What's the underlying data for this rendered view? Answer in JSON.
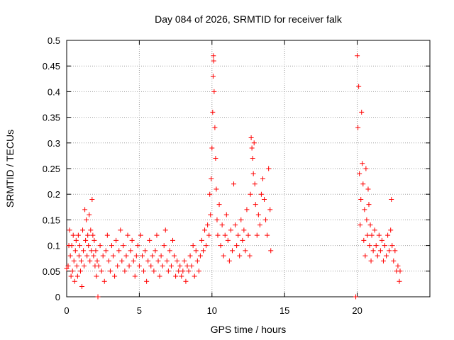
{
  "chart_data": {
    "type": "scatter",
    "title": "Day 084 of 2026, SRMTID for receiver falk",
    "xlabel": "GPS time / hours",
    "ylabel": "SRMTID / TECUs",
    "xlim": [
      0,
      25
    ],
    "ylim": [
      0,
      0.5
    ],
    "x_ticks": [
      0,
      5,
      10,
      15,
      20
    ],
    "x_tick_labels": [
      "0",
      "5",
      "10",
      "15",
      "20"
    ],
    "y_ticks": [
      0,
      0.05,
      0.1,
      0.15,
      0.2,
      0.25,
      0.3,
      0.35,
      0.4,
      0.45,
      0.5
    ],
    "y_tick_labels": [
      "0",
      "0.05",
      "0.1",
      "0.15",
      "0.2",
      "0.25",
      "0.3",
      "0.35",
      "0.4",
      "0.45",
      "0.5"
    ],
    "grid": true,
    "marker": "+",
    "series": [
      {
        "name": "SRMTID",
        "color": "#ff0000",
        "points": [
          [
            0.0,
            0.055
          ],
          [
            0.1,
            0.06
          ],
          [
            0.15,
            0.1
          ],
          [
            0.2,
            0.13
          ],
          [
            0.25,
            0.08
          ],
          [
            0.3,
            0.04
          ],
          [
            0.35,
            0.1
          ],
          [
            0.4,
            0.05
          ],
          [
            0.45,
            0.12
          ],
          [
            0.5,
            0.07
          ],
          [
            0.55,
            0.03
          ],
          [
            0.6,
            0.09
          ],
          [
            0.65,
            0.11
          ],
          [
            0.7,
            0.06
          ],
          [
            0.75,
            0.04
          ],
          [
            0.8,
            0.12
          ],
          [
            0.85,
            0.08
          ],
          [
            0.9,
            0.1
          ],
          [
            0.95,
            0.05
          ],
          [
            1.0,
            0.07
          ],
          [
            1.05,
            0.02
          ],
          [
            1.1,
            0.13
          ],
          [
            1.15,
            0.09
          ],
          [
            1.2,
            0.06
          ],
          [
            1.25,
            0.17
          ],
          [
            1.3,
            0.11
          ],
          [
            1.35,
            0.15
          ],
          [
            1.4,
            0.08
          ],
          [
            1.45,
            0.12
          ],
          [
            1.5,
            0.1
          ],
          [
            1.55,
            0.16
          ],
          [
            1.6,
            0.07
          ],
          [
            1.65,
            0.13
          ],
          [
            1.7,
            0.09
          ],
          [
            1.75,
            0.19
          ],
          [
            1.8,
            0.12
          ],
          [
            1.85,
            0.08
          ],
          [
            1.9,
            0.11
          ],
          [
            1.95,
            0.06
          ],
          [
            2.0,
            0.09
          ],
          [
            2.05,
            0.04
          ],
          [
            2.1,
            0.07
          ],
          [
            2.15,
            0.0
          ],
          [
            2.2,
            0.06
          ],
          [
            2.3,
            0.1
          ],
          [
            2.4,
            0.05
          ],
          [
            2.5,
            0.08
          ],
          [
            2.6,
            0.03
          ],
          [
            2.7,
            0.09
          ],
          [
            2.8,
            0.12
          ],
          [
            2.9,
            0.07
          ],
          [
            3.0,
            0.05
          ],
          [
            3.1,
            0.1
          ],
          [
            3.2,
            0.08
          ],
          [
            3.3,
            0.04
          ],
          [
            3.4,
            0.11
          ],
          [
            3.5,
            0.06
          ],
          [
            3.6,
            0.09
          ],
          [
            3.7,
            0.13
          ],
          [
            3.8,
            0.07
          ],
          [
            3.9,
            0.1
          ],
          [
            4.0,
            0.05
          ],
          [
            4.1,
            0.08
          ],
          [
            4.2,
            0.12
          ],
          [
            4.3,
            0.06
          ],
          [
            4.4,
            0.09
          ],
          [
            4.5,
            0.11
          ],
          [
            4.6,
            0.07
          ],
          [
            4.7,
            0.04
          ],
          [
            4.8,
            0.08
          ],
          [
            4.9,
            0.1
          ],
          [
            5.0,
            0.06
          ],
          [
            5.1,
            0.12
          ],
          [
            5.2,
            0.08
          ],
          [
            5.3,
            0.05
          ],
          [
            5.4,
            0.09
          ],
          [
            5.5,
            0.03
          ],
          [
            5.6,
            0.07
          ],
          [
            5.7,
            0.11
          ],
          [
            5.8,
            0.06
          ],
          [
            5.9,
            0.08
          ],
          [
            6.0,
            0.05
          ],
          [
            6.1,
            0.09
          ],
          [
            6.2,
            0.12
          ],
          [
            6.3,
            0.07
          ],
          [
            6.4,
            0.04
          ],
          [
            6.5,
            0.08
          ],
          [
            6.6,
            0.06
          ],
          [
            6.7,
            0.1
          ],
          [
            6.8,
            0.13
          ],
          [
            6.9,
            0.07
          ],
          [
            7.0,
            0.05
          ],
          [
            7.1,
            0.09
          ],
          [
            7.2,
            0.06
          ],
          [
            7.3,
            0.11
          ],
          [
            7.4,
            0.08
          ],
          [
            7.5,
            0.04
          ],
          [
            7.6,
            0.07
          ],
          [
            7.7,
            0.05
          ],
          [
            7.8,
            0.06
          ],
          [
            7.9,
            0.04
          ],
          [
            8.0,
            0.05
          ],
          [
            8.1,
            0.07
          ],
          [
            8.2,
            0.03
          ],
          [
            8.3,
            0.06
          ],
          [
            8.4,
            0.05
          ],
          [
            8.5,
            0.08
          ],
          [
            8.6,
            0.06
          ],
          [
            8.7,
            0.1
          ],
          [
            8.8,
            0.04
          ],
          [
            8.9,
            0.09
          ],
          [
            9.0,
            0.07
          ],
          [
            9.1,
            0.05
          ],
          [
            9.2,
            0.08
          ],
          [
            9.3,
            0.11
          ],
          [
            9.4,
            0.09
          ],
          [
            9.5,
            0.13
          ],
          [
            9.6,
            0.1
          ],
          [
            9.7,
            0.14
          ],
          [
            9.8,
            0.12
          ],
          [
            9.85,
            0.2
          ],
          [
            9.9,
            0.16
          ],
          [
            9.95,
            0.23
          ],
          [
            10.0,
            0.29
          ],
          [
            10.05,
            0.36
          ],
          [
            10.08,
            0.43
          ],
          [
            10.1,
            0.47
          ],
          [
            10.12,
            0.46
          ],
          [
            10.15,
            0.4
          ],
          [
            10.2,
            0.33
          ],
          [
            10.25,
            0.27
          ],
          [
            10.3,
            0.21
          ],
          [
            10.35,
            0.15
          ],
          [
            10.4,
            0.12
          ],
          [
            10.5,
            0.18
          ],
          [
            10.6,
            0.1
          ],
          [
            10.7,
            0.14
          ],
          [
            10.8,
            0.08
          ],
          [
            10.9,
            0.12
          ],
          [
            11.0,
            0.16
          ],
          [
            11.1,
            0.11
          ],
          [
            11.2,
            0.07
          ],
          [
            11.3,
            0.13
          ],
          [
            11.4,
            0.09
          ],
          [
            11.5,
            0.22
          ],
          [
            11.6,
            0.14
          ],
          [
            11.7,
            0.1
          ],
          [
            11.8,
            0.12
          ],
          [
            11.9,
            0.08
          ],
          [
            12.0,
            0.15
          ],
          [
            12.1,
            0.11
          ],
          [
            12.2,
            0.13
          ],
          [
            12.3,
            0.09
          ],
          [
            12.4,
            0.17
          ],
          [
            12.5,
            0.12
          ],
          [
            12.6,
            0.08
          ],
          [
            12.65,
            0.2
          ],
          [
            12.7,
            0.31
          ],
          [
            12.75,
            0.29
          ],
          [
            12.8,
            0.27
          ],
          [
            12.85,
            0.24
          ],
          [
            12.9,
            0.3
          ],
          [
            12.95,
            0.22
          ],
          [
            13.0,
            0.18
          ],
          [
            13.1,
            0.12
          ],
          [
            13.2,
            0.16
          ],
          [
            13.3,
            0.14
          ],
          [
            13.4,
            0.2
          ],
          [
            13.5,
            0.23
          ],
          [
            13.6,
            0.19
          ],
          [
            13.7,
            0.15
          ],
          [
            13.8,
            0.12
          ],
          [
            13.9,
            0.25
          ],
          [
            14.0,
            0.17
          ],
          [
            14.05,
            0.09
          ],
          [
            19.9,
            0.0
          ],
          [
            20.0,
            0.47
          ],
          [
            20.05,
            0.33
          ],
          [
            20.1,
            0.41
          ],
          [
            20.15,
            0.24
          ],
          [
            20.2,
            0.14
          ],
          [
            20.25,
            0.19
          ],
          [
            20.3,
            0.36
          ],
          [
            20.35,
            0.26
          ],
          [
            20.4,
            0.22
          ],
          [
            20.45,
            0.11
          ],
          [
            20.5,
            0.17
          ],
          [
            20.55,
            0.08
          ],
          [
            20.6,
            0.25
          ],
          [
            20.65,
            0.15
          ],
          [
            20.7,
            0.12
          ],
          [
            20.75,
            0.21
          ],
          [
            20.8,
            0.18
          ],
          [
            20.85,
            0.1
          ],
          [
            20.9,
            0.14
          ],
          [
            20.95,
            0.07
          ],
          [
            21.0,
            0.12
          ],
          [
            21.1,
            0.09
          ],
          [
            21.2,
            0.13
          ],
          [
            21.3,
            0.1
          ],
          [
            21.4,
            0.08
          ],
          [
            21.5,
            0.12
          ],
          [
            21.6,
            0.09
          ],
          [
            21.7,
            0.11
          ],
          [
            21.8,
            0.07
          ],
          [
            21.9,
            0.1
          ],
          [
            22.0,
            0.08
          ],
          [
            22.1,
            0.12
          ],
          [
            22.2,
            0.09
          ],
          [
            22.3,
            0.13
          ],
          [
            22.35,
            0.19
          ],
          [
            22.4,
            0.1
          ],
          [
            22.5,
            0.07
          ],
          [
            22.6,
            0.09
          ],
          [
            22.7,
            0.05
          ],
          [
            22.8,
            0.06
          ],
          [
            22.9,
            0.03
          ],
          [
            22.95,
            0.05
          ]
        ]
      }
    ]
  }
}
